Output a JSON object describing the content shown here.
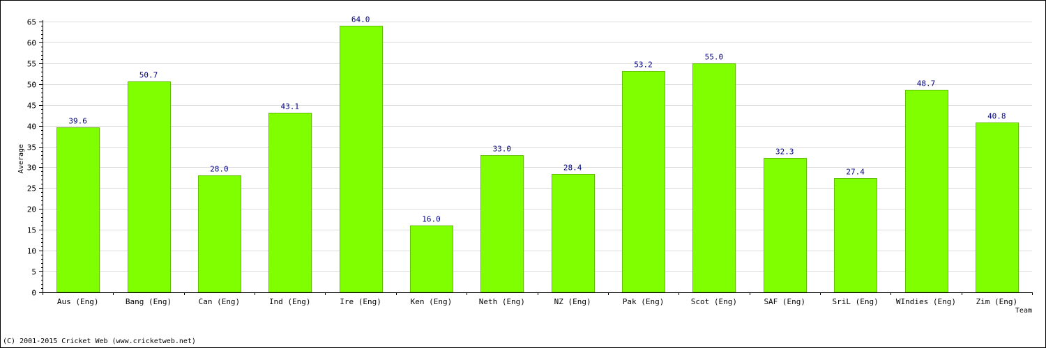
{
  "chart_data": {
    "type": "bar",
    "title": "",
    "xlabel": "Team",
    "ylabel": "Average",
    "ylim": [
      0,
      65
    ],
    "ytick_step": 5,
    "grid": true,
    "categories": [
      "Aus (Eng)",
      "Bang (Eng)",
      "Can (Eng)",
      "Ind (Eng)",
      "Ire (Eng)",
      "Ken (Eng)",
      "Neth (Eng)",
      "NZ (Eng)",
      "Pak (Eng)",
      "Scot (Eng)",
      "SAF (Eng)",
      "SriL (Eng)",
      "WIndies (Eng)",
      "Zim (Eng)"
    ],
    "values": [
      39.6,
      50.7,
      28.0,
      43.1,
      64.0,
      16.0,
      33.0,
      28.4,
      53.2,
      55.0,
      32.3,
      27.4,
      48.7,
      40.8
    ],
    "data_labels": [
      "39.6",
      "50.7",
      "28.0",
      "43.1",
      "64.0",
      "16.0",
      "33.0",
      "28.4",
      "53.2",
      "55.0",
      "32.3",
      "27.4",
      "48.7",
      "40.8"
    ],
    "bar_color": "#80ff00",
    "bar_border_color": "#5fbf00",
    "label_color": "#000080",
    "grid_color": "#dddddd"
  },
  "footer": {
    "copyright": "(C) 2001-2015 Cricket Web (www.cricketweb.net)"
  }
}
